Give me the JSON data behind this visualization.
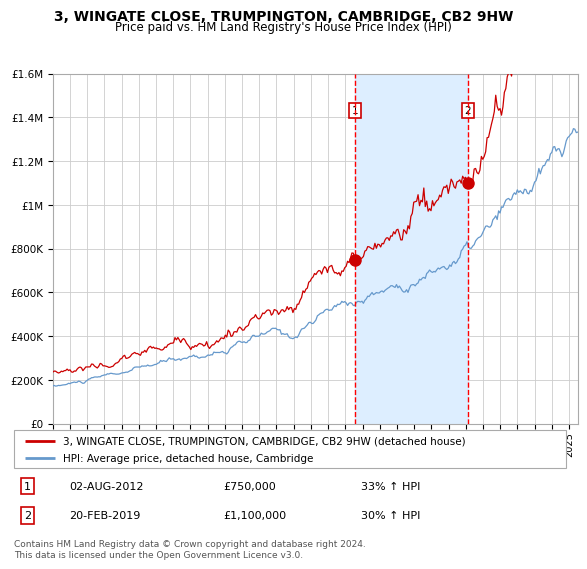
{
  "title": "3, WINGATE CLOSE, TRUMPINGTON, CAMBRIDGE, CB2 9HW",
  "subtitle": "Price paid vs. HM Land Registry's House Price Index (HPI)",
  "title_fontsize": 10,
  "subtitle_fontsize": 8.5,
  "xlim_start": 1995.0,
  "xlim_end": 2025.5,
  "ylim_bottom": 0,
  "ylim_top": 1600000,
  "background_color": "#ffffff",
  "plot_bg_color": "#ffffff",
  "grid_color": "#cccccc",
  "sale1_date": 2012.58,
  "sale1_price": 750000,
  "sale1_label": "1",
  "sale2_date": 2019.12,
  "sale2_price": 1100000,
  "sale2_label": "2",
  "shading_color": "#ddeeff",
  "line1_color": "#cc0000",
  "line2_color": "#6699cc",
  "legend1_label": "3, WINGATE CLOSE, TRUMPINGTON, CAMBRIDGE, CB2 9HW (detached house)",
  "legend2_label": "HPI: Average price, detached house, Cambridge",
  "annotation1": "02-AUG-2012",
  "annotation1_price": "£750,000",
  "annotation1_hpi": "33% ↑ HPI",
  "annotation2": "20-FEB-2019",
  "annotation2_price": "£1,100,000",
  "annotation2_hpi": "30% ↑ HPI",
  "footer": "Contains HM Land Registry data © Crown copyright and database right 2024.\nThis data is licensed under the Open Government Licence v3.0."
}
